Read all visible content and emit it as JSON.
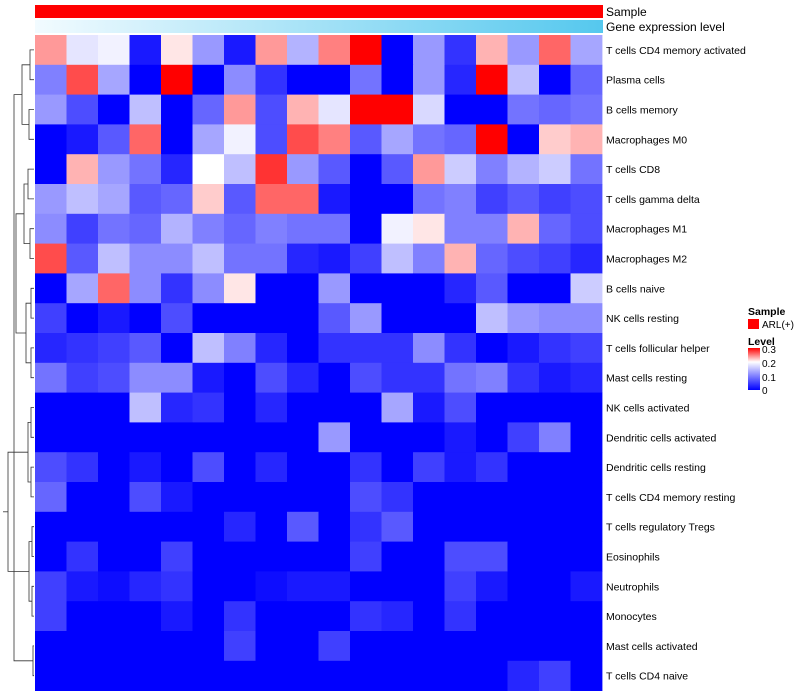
{
  "chart_data": {
    "type": "heatmap",
    "title": "",
    "xlabel": "",
    "ylabel": "",
    "value_range": [
      0,
      0.3
    ],
    "color_scale": {
      "low": "#0000ff",
      "mid": "#ffffff",
      "high": "#ff0000",
      "mid_value": 0.2
    },
    "annotation_tracks": [
      {
        "name": "Sample",
        "value": "ARL(+)",
        "color": "#ff0000"
      },
      {
        "name": "Gene expression level",
        "gradient": [
          "#f2fbff",
          "#55c8ee"
        ]
      }
    ],
    "rows": [
      "T cells CD4 memory activated",
      "Plasma cells",
      "B cells memory",
      "Macrophages M0",
      "T cells CD8",
      "T cells gamma delta",
      "Macrophages M1",
      "Macrophages M2",
      "B cells naive",
      "NK cells resting",
      "T cells follicular helper",
      "Mast cells resting",
      "NK cells activated",
      "Dendritic cells activated",
      "Dendritic cells resting",
      "T cells CD4 memory resting",
      "T cells regulatory  Tregs",
      "Eosinophils",
      "Neutrophils",
      "Monocytes",
      "Mast cells activated",
      "T cells CD4 naive"
    ],
    "n_columns": 18,
    "values": [
      [
        0.24,
        0.18,
        0.19,
        0.02,
        0.21,
        0.12,
        0.02,
        0.24,
        0.14,
        0.25,
        0.3,
        0.0,
        0.12,
        0.04,
        0.23,
        0.12,
        0.26,
        0.13
      ],
      [
        0.1,
        0.27,
        0.13,
        0.0,
        0.3,
        0.0,
        0.11,
        0.04,
        0.0,
        0.0,
        0.09,
        0.0,
        0.12,
        0.03,
        0.3,
        0.15,
        0.0,
        0.08
      ],
      [
        0.12,
        0.06,
        0.0,
        0.15,
        0.0,
        0.08,
        0.24,
        0.06,
        0.23,
        0.18,
        0.3,
        0.3,
        0.17,
        0.0,
        0.0,
        0.09,
        0.08,
        0.09
      ],
      [
        0.0,
        0.02,
        0.07,
        0.26,
        0.0,
        0.13,
        0.19,
        0.06,
        0.27,
        0.25,
        0.07,
        0.13,
        0.09,
        0.08,
        0.3,
        0.0,
        0.22,
        0.23
      ],
      [
        0.0,
        0.23,
        0.12,
        0.09,
        0.03,
        0.2,
        0.15,
        0.28,
        0.12,
        0.07,
        0.0,
        0.07,
        0.24,
        0.16,
        0.1,
        0.14,
        0.16,
        0.09
      ],
      [
        0.12,
        0.15,
        0.13,
        0.07,
        0.08,
        0.22,
        0.07,
        0.26,
        0.26,
        0.02,
        0.0,
        0.0,
        0.09,
        0.1,
        0.05,
        0.07,
        0.05,
        0.06
      ],
      [
        0.11,
        0.05,
        0.09,
        0.08,
        0.14,
        0.1,
        0.08,
        0.1,
        0.09,
        0.09,
        0.0,
        0.19,
        0.21,
        0.1,
        0.1,
        0.23,
        0.08,
        0.06
      ],
      [
        0.27,
        0.07,
        0.15,
        0.11,
        0.11,
        0.15,
        0.09,
        0.09,
        0.03,
        0.02,
        0.05,
        0.15,
        0.1,
        0.23,
        0.08,
        0.06,
        0.05,
        0.03
      ],
      [
        0.0,
        0.13,
        0.26,
        0.11,
        0.04,
        0.11,
        0.21,
        0.0,
        0.0,
        0.12,
        0.0,
        0.0,
        0.0,
        0.03,
        0.07,
        0.0,
        0.0,
        0.16
      ],
      [
        0.05,
        0.0,
        0.02,
        0.0,
        0.06,
        0.0,
        0.0,
        0.0,
        0.0,
        0.07,
        0.12,
        0.0,
        0.0,
        0.0,
        0.15,
        0.12,
        0.11,
        0.11
      ],
      [
        0.03,
        0.04,
        0.05,
        0.07,
        0.0,
        0.15,
        0.1,
        0.03,
        0.0,
        0.04,
        0.04,
        0.04,
        0.11,
        0.04,
        0.0,
        0.02,
        0.04,
        0.05
      ],
      [
        0.09,
        0.05,
        0.06,
        0.11,
        0.11,
        0.02,
        0.0,
        0.06,
        0.03,
        0.0,
        0.06,
        0.04,
        0.04,
        0.09,
        0.1,
        0.04,
        0.02,
        0.03
      ],
      [
        0.0,
        0.0,
        0.0,
        0.15,
        0.03,
        0.04,
        0.0,
        0.03,
        0.0,
        0.0,
        0.0,
        0.13,
        0.02,
        0.06,
        0.0,
        0.0,
        0.0,
        0.0
      ],
      [
        0.0,
        0.0,
        0.0,
        0.0,
        0.0,
        0.0,
        0.0,
        0.0,
        0.0,
        0.12,
        0.0,
        0.0,
        0.0,
        0.02,
        0.0,
        0.05,
        0.1,
        0.0
      ],
      [
        0.06,
        0.04,
        0.0,
        0.02,
        0.0,
        0.06,
        0.0,
        0.03,
        0.0,
        0.0,
        0.04,
        0.0,
        0.05,
        0.02,
        0.04,
        0.0,
        0.0,
        0.0
      ],
      [
        0.08,
        0.0,
        0.0,
        0.06,
        0.02,
        0.0,
        0.0,
        0.0,
        0.0,
        0.0,
        0.06,
        0.04,
        0.0,
        0.0,
        0.0,
        0.0,
        0.0,
        0.0
      ],
      [
        0.0,
        0.0,
        0.0,
        0.0,
        0.0,
        0.0,
        0.03,
        0.0,
        0.07,
        0.0,
        0.04,
        0.07,
        0.0,
        0.0,
        0.0,
        0.0,
        0.0,
        0.0
      ],
      [
        0.0,
        0.04,
        0.0,
        0.0,
        0.05,
        0.0,
        0.0,
        0.0,
        0.0,
        0.0,
        0.05,
        0.0,
        0.0,
        0.06,
        0.06,
        0.0,
        0.0,
        0.0
      ],
      [
        0.05,
        0.02,
        0.01,
        0.03,
        0.04,
        0.0,
        0.0,
        0.01,
        0.02,
        0.02,
        0.0,
        0.0,
        0.0,
        0.05,
        0.02,
        0.0,
        0.0,
        0.02
      ],
      [
        0.05,
        0.0,
        0.0,
        0.0,
        0.02,
        0.0,
        0.04,
        0.0,
        0.0,
        0.0,
        0.04,
        0.03,
        0.0,
        0.04,
        0.0,
        0.0,
        0.0,
        0.0
      ],
      [
        0.0,
        0.0,
        0.0,
        0.0,
        0.0,
        0.0,
        0.05,
        0.0,
        0.0,
        0.05,
        0.0,
        0.0,
        0.0,
        0.0,
        0.0,
        0.0,
        0.0,
        0.0
      ],
      [
        0.0,
        0.0,
        0.0,
        0.0,
        0.0,
        0.0,
        0.0,
        0.0,
        0.0,
        0.0,
        0.0,
        0.0,
        0.0,
        0.0,
        0.0,
        0.03,
        0.05,
        0.0
      ]
    ],
    "legend": {
      "sample_title": "Sample",
      "sample_entry": "ARL(+)",
      "sample_color": "#ff0000",
      "level_title": "Level",
      "level_ticks": [
        "0.3",
        "0.2",
        "0.1",
        "0"
      ]
    },
    "dendrogram": "row"
  }
}
